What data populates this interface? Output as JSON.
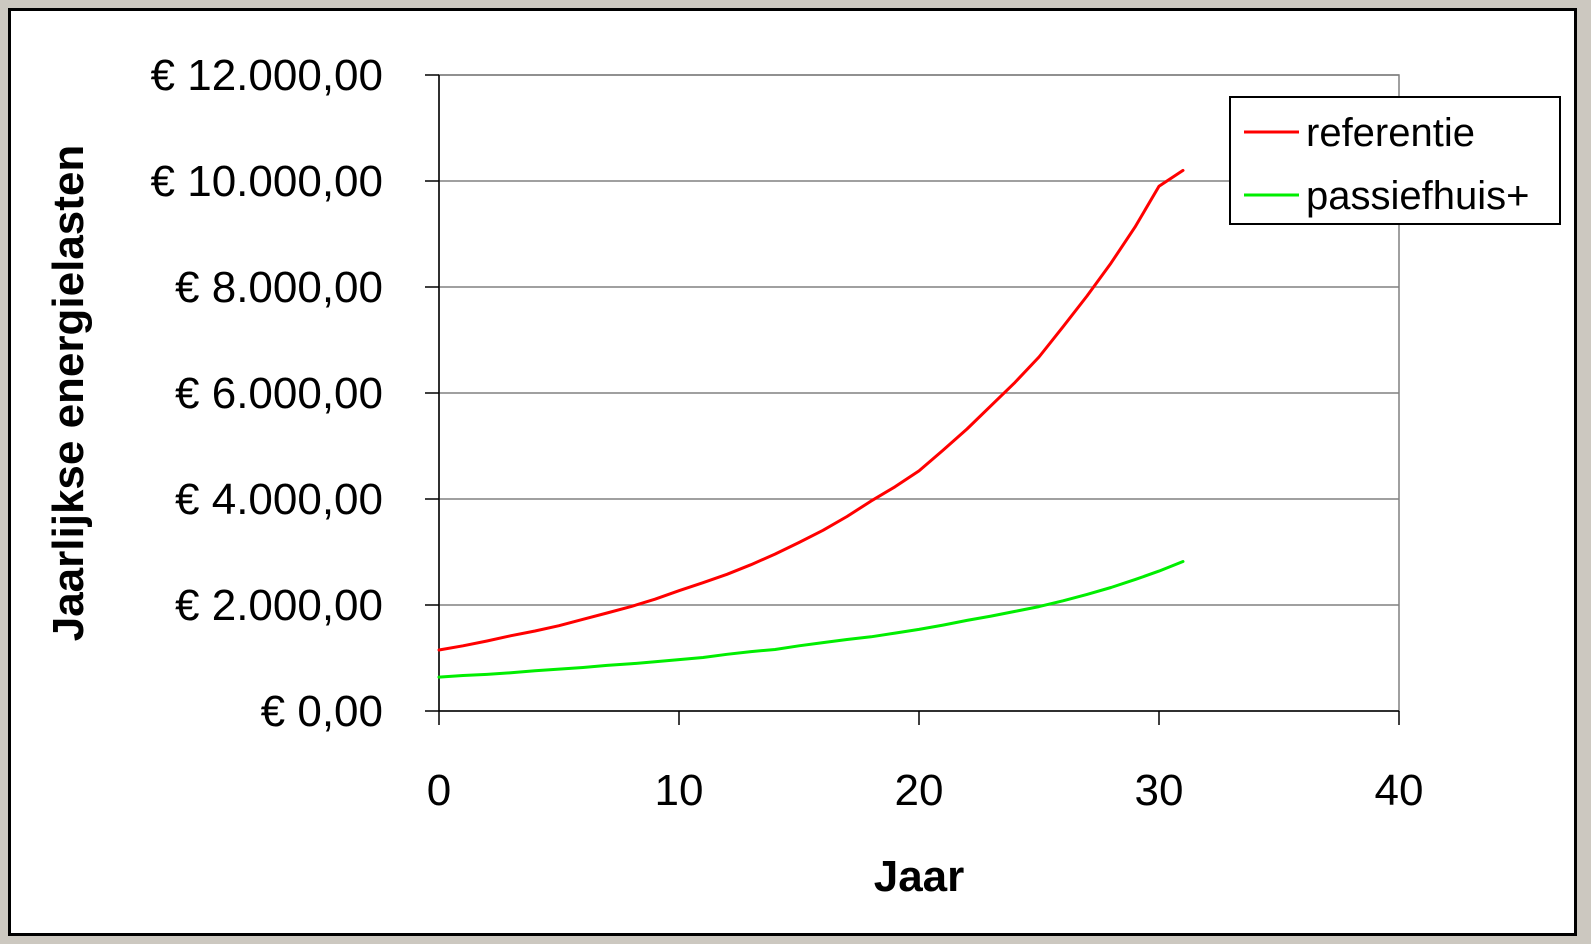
{
  "chart_data": {
    "type": "line",
    "title": "",
    "xlabel": "Jaar",
    "ylabel": "Jaarlijkse energielasten",
    "xlim": [
      0,
      40
    ],
    "ylim": [
      0,
      12000
    ],
    "x_ticks": [
      0,
      10,
      20,
      30,
      40
    ],
    "x_tick_labels": [
      "0",
      "10",
      "20",
      "30",
      "40"
    ],
    "y_ticks": [
      0,
      2000,
      4000,
      6000,
      8000,
      10000,
      12000
    ],
    "y_tick_labels": [
      "€ 0,00",
      "€ 2.000,00",
      "€ 4.000,00",
      "€ 6.000,00",
      "€ 8.000,00",
      "€ 10.000,00",
      "€ 12.000,00"
    ],
    "grid": "horizontal",
    "legend_position": "top-right",
    "x": [
      0,
      1,
      2,
      3,
      4,
      5,
      6,
      7,
      8,
      9,
      10,
      11,
      12,
      13,
      14,
      15,
      16,
      17,
      18,
      19,
      20,
      21,
      22,
      23,
      24,
      25,
      26,
      27,
      28,
      29,
      30,
      31
    ],
    "series": [
      {
        "name": "referentie",
        "color": "#ff0000",
        "values": [
          1150,
          1230,
          1320,
          1420,
          1510,
          1610,
          1730,
          1850,
          1970,
          2110,
          2270,
          2420,
          2580,
          2760,
          2960,
          3180,
          3410,
          3670,
          3960,
          4230,
          4530,
          4920,
          5320,
          5760,
          6200,
          6680,
          7250,
          7830,
          8450,
          9130,
          9900,
          10200
        ]
      },
      {
        "name": "passiefhuis+",
        "color": "#00ee00",
        "values": [
          640,
          670,
          690,
          720,
          760,
          790,
          820,
          860,
          890,
          930,
          970,
          1010,
          1070,
          1120,
          1160,
          1230,
          1290,
          1350,
          1400,
          1470,
          1540,
          1620,
          1710,
          1790,
          1880,
          1970,
          2080,
          2200,
          2330,
          2480,
          2640,
          2820
        ]
      }
    ]
  },
  "colors": {
    "background": "#ffffff",
    "frame_border": "#000000",
    "page_background": "#ccc8c0",
    "gridline": "#808080"
  }
}
